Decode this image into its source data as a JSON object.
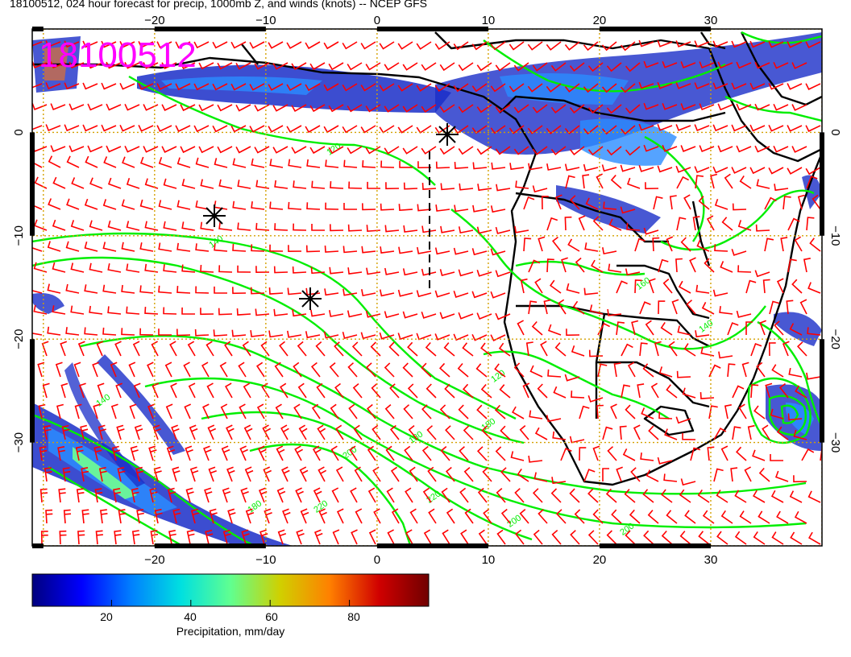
{
  "title": "18100512, 024 hour forecast for precip, 1000mb Z, and winds (knots) -- NCEP GFS",
  "stamp": "18100512",
  "map": {
    "lon_range": [
      -31,
      40
    ],
    "lat_range": [
      -40,
      10
    ],
    "lon_ticks": [
      {
        "value": -20,
        "label": "−20"
      },
      {
        "value": -10,
        "label": "−10"
      },
      {
        "value": 0,
        "label": "0"
      },
      {
        "value": 10,
        "label": "10"
      },
      {
        "value": 20,
        "label": "20"
      },
      {
        "value": 30,
        "label": "30"
      }
    ],
    "lat_ticks": [
      {
        "value": 0,
        "label": "0"
      },
      {
        "value": -10,
        "label": "−10"
      },
      {
        "value": -20,
        "label": "−20"
      },
      {
        "value": -30,
        "label": "−30"
      }
    ],
    "contour_labels": [
      "120",
      "140",
      "160",
      "180",
      "200",
      "220"
    ],
    "colors": {
      "barb": "#ff0000",
      "contour": "#00ee00",
      "coast": "#000000",
      "grid": "#d4a000",
      "stamp": "#ff00ff"
    }
  },
  "colorbar": {
    "ticks": [
      "20",
      "40",
      "60",
      "80"
    ],
    "tick_values": [
      20,
      40,
      60,
      80
    ],
    "range": [
      0,
      100
    ],
    "label": "Precipitation, mm/day",
    "colors": [
      "#00007f",
      "#0000ff",
      "#0080ff",
      "#00e0e0",
      "#60ff90",
      "#d0d000",
      "#ff8000",
      "#d00000",
      "#700000"
    ]
  }
}
